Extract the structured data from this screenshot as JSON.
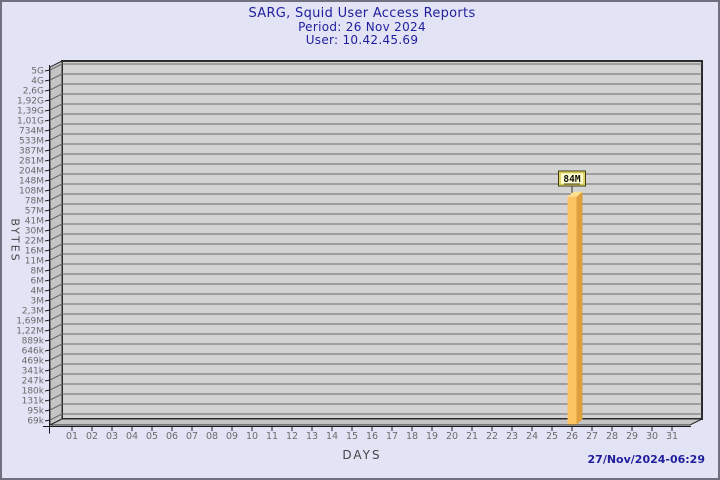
{
  "header": {
    "title": "SARG, Squid User Access Reports",
    "period": "Period: 26 Nov 2024",
    "user": "User: 10.42.45.69"
  },
  "footer": {
    "generated": "27/Nov/2024-06:29"
  },
  "chart_data": {
    "type": "bar",
    "title": "SARG, Squid User Access Reports",
    "subtitle": [
      "Period: 26 Nov 2024",
      "User: 10.42.45.69"
    ],
    "xlabel": "DAYS",
    "ylabel": "BYTES",
    "x_categories": [
      "01",
      "02",
      "03",
      "04",
      "05",
      "06",
      "07",
      "08",
      "09",
      "10",
      "11",
      "12",
      "13",
      "14",
      "15",
      "16",
      "17",
      "18",
      "19",
      "20",
      "21",
      "22",
      "23",
      "24",
      "25",
      "26",
      "27",
      "28",
      "29",
      "30",
      "31"
    ],
    "y_axis_type": "log",
    "y_tick_labels": [
      "5G",
      "4G",
      "2,6G",
      "1,92G",
      "1,39G",
      "1,01G",
      "734M",
      "533M",
      "387M",
      "281M",
      "204M",
      "148M",
      "108M",
      "78M",
      "57M",
      "41M",
      "30M",
      "22M",
      "16M",
      "11M",
      "8M",
      "6M",
      "4M",
      "3M",
      "2,3M",
      "1,69M",
      "1,22M",
      "889k",
      "646k",
      "469k",
      "341k",
      "247k",
      "180k",
      "131k",
      "95k",
      "69k"
    ],
    "y_tick_values": [
      5000000000,
      4000000000,
      2600000000,
      1920000000,
      1390000000,
      1010000000,
      734000000,
      533000000,
      387000000,
      281000000,
      204000000,
      148000000,
      108000000,
      78000000,
      57000000,
      41000000,
      30000000,
      22000000,
      16000000,
      11000000,
      8000000,
      6000000,
      4000000,
      3000000,
      2300000,
      1690000,
      1220000,
      889000,
      646000,
      469000,
      341000,
      247000,
      180000,
      131000,
      95000,
      69000
    ],
    "bars": [
      {
        "x": "26",
        "value": 84000000,
        "value_label": "84M"
      }
    ],
    "legend": null,
    "grid": "horizontal"
  },
  "colors": {
    "page_bg": "#e3e3f6",
    "page_border": "#70707e",
    "plot_bg": "#d3d3d3",
    "wall_fill": "#c4c4c6",
    "grid_line": "#6a6a6a",
    "frame_line": "#2b2b2b",
    "axis_line": "#1a1a1a",
    "tick_label": "#6b6b6b",
    "bar_front": "#fdc463",
    "bar_side": "#df9f3c",
    "bar_top": "#fee08e",
    "callout_bg": "#ffffd0",
    "callout_border": "#3a3a10",
    "callout_inner": "#d6c648",
    "callout_text": "#111111",
    "title_color": "#1f1f9e",
    "axis_title_color": "#454545",
    "timestamp_color": "#1f1f9e"
  }
}
